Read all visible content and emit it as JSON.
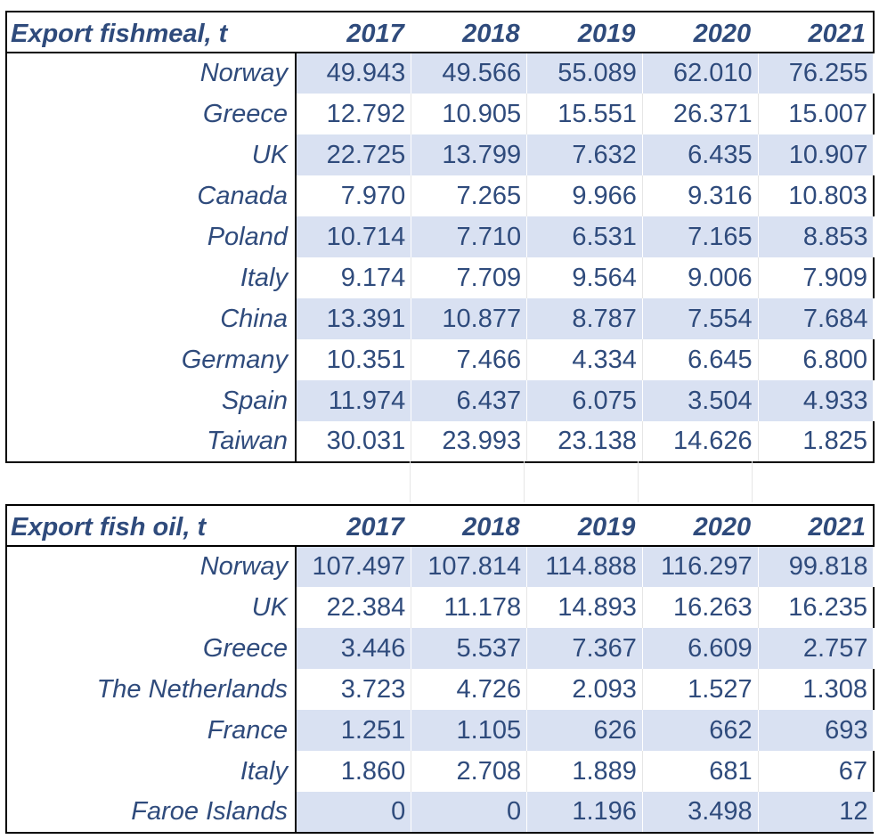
{
  "tables": [
    {
      "title": "Export fishmeal, t",
      "years": [
        "2017",
        "2018",
        "2019",
        "2020",
        "2021"
      ],
      "rows": [
        {
          "country": "Norway",
          "values": [
            "49.943",
            "49.566",
            "55.089",
            "62.010",
            "76.255"
          ]
        },
        {
          "country": "Greece",
          "values": [
            "12.792",
            "10.905",
            "15.551",
            "26.371",
            "15.007"
          ]
        },
        {
          "country": "UK",
          "values": [
            "22.725",
            "13.799",
            "7.632",
            "6.435",
            "10.907"
          ]
        },
        {
          "country": "Canada",
          "values": [
            "7.970",
            "7.265",
            "9.966",
            "9.316",
            "10.803"
          ]
        },
        {
          "country": "Poland",
          "values": [
            "10.714",
            "7.710",
            "6.531",
            "7.165",
            "8.853"
          ]
        },
        {
          "country": "Italy",
          "values": [
            "9.174",
            "7.709",
            "9.564",
            "9.006",
            "7.909"
          ]
        },
        {
          "country": "China",
          "values": [
            "13.391",
            "10.877",
            "8.787",
            "7.554",
            "7.684"
          ]
        },
        {
          "country": "Germany",
          "values": [
            "10.351",
            "7.466",
            "4.334",
            "6.645",
            "6.800"
          ]
        },
        {
          "country": "Spain",
          "values": [
            "11.974",
            "6.437",
            "6.075",
            "3.504",
            "4.933"
          ]
        },
        {
          "country": "Taiwan",
          "values": [
            "30.031",
            "23.993",
            "23.138",
            "14.626",
            "1.825"
          ]
        }
      ]
    },
    {
      "title": "Export fish oil, t",
      "years": [
        "2017",
        "2018",
        "2019",
        "2020",
        "2021"
      ],
      "rows": [
        {
          "country": "Norway",
          "values": [
            "107.497",
            "107.814",
            "114.888",
            "116.297",
            "99.818"
          ]
        },
        {
          "country": "UK",
          "values": [
            "22.384",
            "11.178",
            "14.893",
            "16.263",
            "16.235"
          ]
        },
        {
          "country": "Greece",
          "values": [
            "3.446",
            "5.537",
            "7.367",
            "6.609",
            "2.757"
          ]
        },
        {
          "country": "The Netherlands",
          "values": [
            "3.723",
            "4.726",
            "2.093",
            "1.527",
            "1.308"
          ]
        },
        {
          "country": "France",
          "values": [
            "1.251",
            "1.105",
            "626",
            "662",
            "693"
          ]
        },
        {
          "country": "Italy",
          "values": [
            "1.860",
            "2.708",
            "1.889",
            "681",
            "67"
          ]
        },
        {
          "country": "Faroe Islands",
          "values": [
            "0",
            "0",
            "1.196",
            "3.498",
            "12"
          ]
        }
      ]
    }
  ],
  "colors": {
    "text": "#2f4b7c",
    "band": "#d9e1f2",
    "border": "#000000"
  }
}
